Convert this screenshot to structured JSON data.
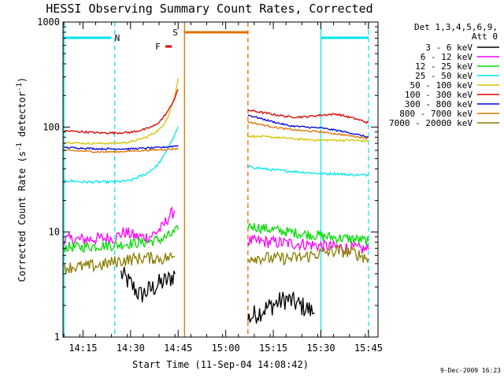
{
  "chart_data": {
    "type": "line",
    "title": "HESSI Observing Summary Count Rates, Corrected",
    "xlabel": "Start Time (11-Sep-04 14:08:42)",
    "ylabel": "Corrected Count Rate (s⁻¹ detector⁻¹)",
    "ylabel_main": "Corrected Count Rate (s",
    "ylabel_sup1": "-1",
    "ylabel_mid": " detector",
    "ylabel_sup2": "-1",
    "ylabel_end": ")",
    "y_scale": "log",
    "ylim": [
      1,
      1000
    ],
    "xlim": [
      "14:08:42",
      "15:48:00"
    ],
    "x_tick_labels": [
      "14:15",
      "14:30",
      "14:45",
      "15:00",
      "15:15",
      "15:30",
      "15:45"
    ],
    "y_tick_labels": [
      "1",
      "10",
      "100",
      "1000"
    ],
    "grid": false,
    "legend_position": "right",
    "legend_header": [
      "Det 1,3,4,5,6,9,",
      "Att 0"
    ],
    "footer_text": "9-Dec-2009 16:23",
    "data_gap": [
      "14:47",
      "15:07"
    ],
    "series": [
      {
        "name": "3 - 6 keV",
        "color": "#000000",
        "segments": [
          [
            [
              "14:27",
              4
            ],
            [
              "14:30",
              3.2
            ],
            [
              "14:33",
              2.5
            ],
            [
              "14:36",
              2.8
            ],
            [
              "14:39",
              3.2
            ],
            [
              "14:42",
              3.5
            ],
            [
              "14:44",
              4
            ]
          ],
          [
            [
              "15:07",
              1.5
            ],
            [
              "15:10",
              1.7
            ],
            [
              "15:13",
              1.9
            ],
            [
              "15:16",
              2.1
            ],
            [
              "15:19",
              2.3
            ],
            [
              "15:22",
              2.1
            ],
            [
              "15:25",
              1.9
            ],
            [
              "15:28",
              1.7
            ]
          ]
        ]
      },
      {
        "name": "6 - 12 keV",
        "color": "#ff00ff",
        "segments": [
          [
            [
              "14:09",
              8.5
            ],
            [
              "14:15",
              8.5
            ],
            [
              "14:20",
              8.7
            ],
            [
              "14:25",
              8.8
            ],
            [
              "14:28",
              10
            ],
            [
              "14:32",
              9
            ],
            [
              "14:36",
              9
            ],
            [
              "14:40",
              11
            ],
            [
              "14:42",
              14
            ],
            [
              "14:44",
              16
            ]
          ],
          [
            [
              "15:07",
              8.2
            ],
            [
              "15:15",
              8
            ],
            [
              "15:20",
              7.8
            ],
            [
              "15:25",
              7.7
            ],
            [
              "15:30",
              7.4
            ],
            [
              "15:35",
              7.2
            ],
            [
              "15:40",
              7
            ],
            [
              "15:45",
              6.8
            ]
          ]
        ]
      },
      {
        "name": "12 - 25 keV",
        "color": "#00dd00",
        "segments": [
          [
            [
              "14:09",
              7.2
            ],
            [
              "14:15",
              7.2
            ],
            [
              "14:20",
              7.4
            ],
            [
              "14:25",
              7.5
            ],
            [
              "14:30",
              7.8
            ],
            [
              "14:35",
              8
            ],
            [
              "14:40",
              8.6
            ],
            [
              "14:43",
              9.5
            ],
            [
              "14:45",
              10.5
            ]
          ],
          [
            [
              "15:07",
              11.5
            ],
            [
              "15:15",
              10.5
            ],
            [
              "15:20",
              10
            ],
            [
              "15:25",
              9.6
            ],
            [
              "15:30",
              9.2
            ],
            [
              "15:35",
              8.8
            ],
            [
              "15:40",
              8.6
            ],
            [
              "15:45",
              8.2
            ]
          ]
        ]
      },
      {
        "name": "25 - 50 keV",
        "color": "#00e5ee",
        "segments": [
          [
            [
              "14:09",
              31
            ],
            [
              "14:15",
              30
            ],
            [
              "14:20",
              30
            ],
            [
              "14:25",
              30
            ],
            [
              "14:30",
              31
            ],
            [
              "14:35",
              36
            ],
            [
              "14:38",
              42
            ],
            [
              "14:40",
              50
            ],
            [
              "14:42",
              65
            ],
            [
              "14:44",
              85
            ],
            [
              "14:45",
              100
            ]
          ],
          [
            [
              "15:07",
              42
            ],
            [
              "15:15",
              39
            ],
            [
              "15:20",
              38
            ],
            [
              "15:25",
              37
            ],
            [
              "15:30",
              36
            ],
            [
              "15:35",
              36
            ],
            [
              "15:40",
              35
            ],
            [
              "15:45",
              35
            ]
          ]
        ]
      },
      {
        "name": "50 - 100 keV",
        "color": "#d4c400",
        "segments": [
          [
            [
              "14:09",
              72
            ],
            [
              "14:15",
              70
            ],
            [
              "14:20",
              70
            ],
            [
              "14:25",
              70
            ],
            [
              "14:30",
              72
            ],
            [
              "14:35",
              80
            ],
            [
              "14:38",
              90
            ],
            [
              "14:40",
              100
            ],
            [
              "14:42",
              130
            ],
            [
              "14:44",
              200
            ],
            [
              "14:45",
              290
            ]
          ],
          [
            [
              "15:07",
              82
            ],
            [
              "15:15",
              80
            ],
            [
              "15:20",
              78
            ],
            [
              "15:25",
              76
            ],
            [
              "15:30",
              75
            ],
            [
              "15:35",
              75
            ],
            [
              "15:40",
              75
            ],
            [
              "15:45",
              73
            ]
          ]
        ]
      },
      {
        "name": "100 - 300 keV",
        "color": "#dd0000",
        "segments": [
          [
            [
              "14:09",
              92
            ],
            [
              "14:15",
              90
            ],
            [
              "14:20",
              88
            ],
            [
              "14:25",
              88
            ],
            [
              "14:30",
              89
            ],
            [
              "14:35",
              96
            ],
            [
              "14:38",
              105
            ],
            [
              "14:40",
              120
            ],
            [
              "14:42",
              145
            ],
            [
              "14:44",
              190
            ],
            [
              "14:45",
              230
            ]
          ],
          [
            [
              "15:07",
              145
            ],
            [
              "15:15",
              132
            ],
            [
              "15:20",
              125
            ],
            [
              "15:25",
              125
            ],
            [
              "15:30",
              130
            ],
            [
              "15:35",
              133
            ],
            [
              "15:40",
              122
            ],
            [
              "15:45",
              110
            ]
          ]
        ]
      },
      {
        "name": "300 - 800 keV",
        "color": "#0000dd",
        "segments": [
          [
            [
              "14:09",
              64
            ],
            [
              "14:15",
              63
            ],
            [
              "14:20",
              62
            ],
            [
              "14:25",
              62
            ],
            [
              "14:30",
              62
            ],
            [
              "14:35",
              63
            ],
            [
              "14:40",
              64
            ],
            [
              "14:44",
              66
            ],
            [
              "14:45",
              67
            ]
          ],
          [
            [
              "15:07",
              130
            ],
            [
              "15:15",
              112
            ],
            [
              "15:20",
              103
            ],
            [
              "15:25",
              100
            ],
            [
              "15:30",
              98
            ],
            [
              "15:35",
              93
            ],
            [
              "15:40",
              87
            ],
            [
              "15:45",
              80
            ]
          ]
        ]
      },
      {
        "name": "800 - 7000 keV",
        "color": "#e07000",
        "segments": [
          [
            [
              "14:09",
              60
            ],
            [
              "14:15",
              59
            ],
            [
              "14:20",
              58
            ],
            [
              "14:25",
              58
            ],
            [
              "14:30",
              59
            ],
            [
              "14:35",
              60
            ],
            [
              "14:40",
              61
            ],
            [
              "14:44",
              62
            ],
            [
              "14:45",
              63
            ]
          ],
          [
            [
              "15:07",
              112
            ],
            [
              "15:15",
              100
            ],
            [
              "15:20",
              95
            ],
            [
              "15:25",
              92
            ],
            [
              "15:30",
              90
            ],
            [
              "15:35",
              86
            ],
            [
              "15:40",
              82
            ],
            [
              "15:45",
              78
            ]
          ]
        ]
      },
      {
        "name": "7000 - 20000 keV",
        "color": "#8b7d00",
        "segments": [
          [
            [
              "14:09",
              4.6
            ],
            [
              "14:15",
              4.7
            ],
            [
              "14:20",
              4.8
            ],
            [
              "14:25",
              5.2
            ],
            [
              "14:30",
              5.5
            ],
            [
              "14:35",
              5.7
            ],
            [
              "14:40",
              5.6
            ],
            [
              "14:44",
              5.8
            ]
          ],
          [
            [
              "15:07",
              5.8
            ],
            [
              "15:15",
              5.6
            ],
            [
              "15:20",
              5.6
            ],
            [
              "15:25",
              5.8
            ],
            [
              "15:30",
              6.3
            ],
            [
              "15:35",
              6.6
            ],
            [
              "15:40",
              6.4
            ],
            [
              "15:45",
              5.6
            ]
          ]
        ]
      }
    ],
    "annotations": {
      "night_bars": [
        [
          "14:09",
          "14:24"
        ],
        [
          "15:30",
          "15:45"
        ]
      ],
      "night_label": "N",
      "night_color": "#00e5ee",
      "saa_bar": [
        "14:47",
        "15:07"
      ],
      "saa_label": "S",
      "saa_color": "#e07000",
      "flare_bar": [
        "14:41",
        "14:43"
      ],
      "flare_label": "F",
      "flare_color": "#dd0000",
      "night_lines_dashed": [
        "14:25",
        "15:45"
      ],
      "night_lines_solid": [
        "14:09",
        "15:30"
      ],
      "saa_line_solid": "14:47",
      "saa_line_dashed": "15:07"
    }
  }
}
